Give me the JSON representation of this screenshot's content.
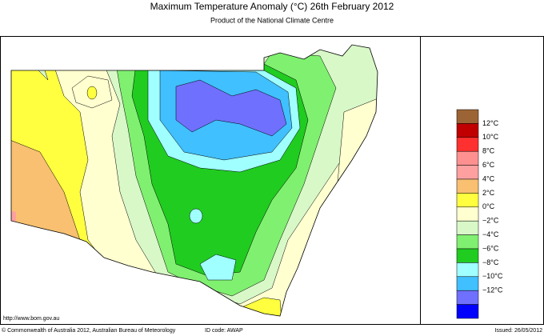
{
  "header": {
    "title": "Maximum Temperature Anomaly (°C)  26th February 2012",
    "subtitle": "Product of the National Climate Centre"
  },
  "legend": {
    "colors": [
      "#9c6434",
      "#c00000",
      "#ff3030",
      "#ff9090",
      "#ffa0a0",
      "#f8c070",
      "#ffff40",
      "#ffffd0",
      "#d8f8c8",
      "#80f070",
      "#20cc20",
      "#a0ffff",
      "#40c0ff",
      "#7070ff",
      "#0000ff"
    ],
    "labels": [
      "12°C",
      "10°C",
      "8°C",
      "6°C",
      "4°C",
      "2°C",
      "0°C",
      "−2°C",
      "−4°C",
      "−6°C",
      "−8°C",
      "−10°C",
      "−12°C"
    ]
  },
  "footer": {
    "url": "http://www.bom.gov.au",
    "copyright": "© Commonwealth of Australia 2012, Australian Bureau of Meteorology",
    "id_code": "ID code: AWAP",
    "issued": "Issued: 26/05/2012"
  }
}
